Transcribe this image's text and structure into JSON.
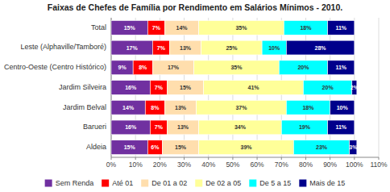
{
  "chart_data": {
    "type": "bar",
    "orientation": "horizontal",
    "stacked": true,
    "title": "Faixas de Chefes de Família por Rendimento em Salários Mínimos - 2010.",
    "categories": [
      "Total",
      "Leste (Alphaville/Tamboré)",
      "Centro-Oeste (Centro Histórico)",
      "Jardim Silveira",
      "Jardim Belval",
      "Barueri",
      "Aldeia"
    ],
    "series": [
      {
        "name": "Sem Renda",
        "color": "#7030A0",
        "values": [
          15,
          17,
          9,
          16,
          14,
          16,
          15
        ],
        "value_labels": [
          "15%",
          "17%",
          "9%",
          "16%",
          "14%",
          "16%",
          "15%"
        ]
      },
      {
        "name": "Até 01",
        "color": "#FF0000",
        "values": [
          7,
          7,
          8,
          7,
          8,
          7,
          6
        ],
        "value_labels": [
          "7%",
          "7%",
          "8%",
          "7%",
          "8%",
          "7%",
          "6%"
        ]
      },
      {
        "name": "De 01 a 02",
        "color": "#FFDEAD",
        "values": [
          14,
          13,
          17,
          15,
          13,
          13,
          15
        ],
        "value_labels": [
          "14%",
          "13%",
          "17%",
          "15%",
          "13%",
          "13%",
          "15%"
        ]
      },
      {
        "name": "De 02 a 05",
        "color": "#FFFF99",
        "values": [
          35,
          25,
          35,
          41,
          37,
          34,
          39
        ],
        "value_labels": [
          "35%",
          "25%",
          "35%",
          "41%",
          "37%",
          "34%",
          "39%"
        ]
      },
      {
        "name": "De 5 a 15",
        "color": "#00FFFF",
        "values": [
          18,
          10,
          20,
          20,
          18,
          19,
          23
        ],
        "value_labels": [
          "18%",
          "10%",
          "20%",
          "20%",
          "18%",
          "19%",
          "23%"
        ]
      },
      {
        "name": "Mais de 15",
        "color": "#00008B",
        "values": [
          11,
          28,
          11,
          2,
          10,
          11,
          3
        ],
        "value_labels": [
          "11%",
          "28%",
          "11%",
          "2%",
          "10%",
          "11%",
          "3%"
        ]
      }
    ],
    "xlim": [
      0,
      110
    ],
    "xticks": [
      {
        "value": 0,
        "label": "0%"
      },
      {
        "value": 10,
        "label": "10%"
      },
      {
        "value": 20,
        "label": "20%"
      },
      {
        "value": 30,
        "label": "30%"
      },
      {
        "value": 40,
        "label": "40%"
      },
      {
        "value": 50,
        "label": "50%"
      },
      {
        "value": 60,
        "label": "60%"
      },
      {
        "value": 70,
        "label": "70%"
      },
      {
        "value": 80,
        "label": "80%"
      },
      {
        "value": 90,
        "label": "90%"
      },
      {
        "value": 100,
        "label": "100%"
      },
      {
        "value": 110,
        "label": "110%"
      }
    ],
    "grid": true,
    "legend": "bottom",
    "data_labels": true
  }
}
